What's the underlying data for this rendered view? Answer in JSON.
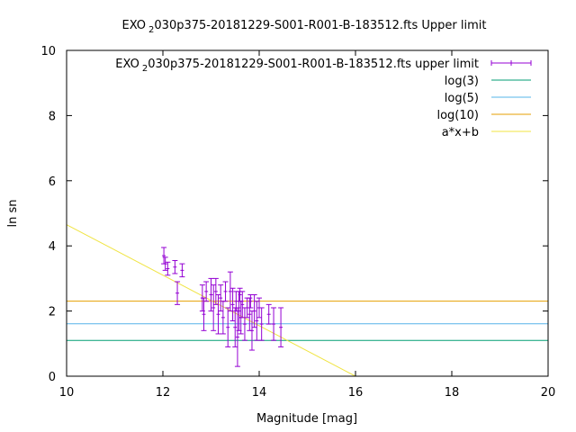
{
  "chart_data": {
    "type": "scatter",
    "title": {
      "prefix": "EXO",
      "subscript": "2",
      "suffix": "030p375-20181229-S001-R001-B-183512.fts Upper limit"
    },
    "xlabel": "Magnitude [mag]",
    "ylabel": "ln sn",
    "xlim": [
      10,
      20
    ],
    "ylim": [
      0,
      10
    ],
    "xticks": [
      "10",
      "12",
      "14",
      "16",
      "18",
      "20"
    ],
    "yticks": [
      "0",
      "2",
      "4",
      "6",
      "8",
      "10"
    ],
    "grid": false,
    "legend_position": "top-right",
    "legend": [
      {
        "prefix": "EXO",
        "subscript": "2",
        "suffix": "030p375-20181229-S001-R001-B-183512.fts upper limit",
        "style": "errorbars",
        "color": "#9400d3"
      },
      {
        "label": "log(3)",
        "style": "line",
        "color": "#009e73"
      },
      {
        "label": "log(5)",
        "style": "line",
        "color": "#56b4e9"
      },
      {
        "label": "log(10)",
        "style": "line",
        "color": "#e69f00"
      },
      {
        "label": "a*x+b",
        "style": "line",
        "color": "#f0e442"
      }
    ],
    "hlines": [
      {
        "name": "log(3)",
        "y": 1.0986,
        "color": "#009e73"
      },
      {
        "name": "log(5)",
        "y": 1.6094,
        "color": "#56b4e9"
      },
      {
        "name": "log(10)",
        "y": 2.3026,
        "color": "#e69f00"
      }
    ],
    "fit_line": {
      "name": "a*x+b",
      "slope": -0.775,
      "intercept": 12.4,
      "x_range": [
        10,
        16.0
      ],
      "color": "#f0e442"
    },
    "series": [
      {
        "name": "EXO 2 030p375-20181229-S001-R001-B-183512.fts upper limit",
        "color": "#9400d3",
        "points": [
          {
            "x": 12.02,
            "y": 3.7,
            "err": 0.25
          },
          {
            "x": 12.05,
            "y": 3.45,
            "err": 0.2
          },
          {
            "x": 12.1,
            "y": 3.3,
            "err": 0.2
          },
          {
            "x": 12.25,
            "y": 3.35,
            "err": 0.2
          },
          {
            "x": 12.3,
            "y": 2.55,
            "err": 0.35
          },
          {
            "x": 12.4,
            "y": 3.25,
            "err": 0.2
          },
          {
            "x": 12.82,
            "y": 2.4,
            "err": 0.4
          },
          {
            "x": 12.85,
            "y": 1.9,
            "err": 0.5
          },
          {
            "x": 12.9,
            "y": 2.6,
            "err": 0.3
          },
          {
            "x": 13.0,
            "y": 2.5,
            "err": 0.5
          },
          {
            "x": 13.05,
            "y": 2.1,
            "err": 0.7
          },
          {
            "x": 13.1,
            "y": 2.6,
            "err": 0.4
          },
          {
            "x": 13.15,
            "y": 1.9,
            "err": 0.6
          },
          {
            "x": 13.2,
            "y": 2.4,
            "err": 0.4
          },
          {
            "x": 13.25,
            "y": 1.8,
            "err": 0.5
          },
          {
            "x": 13.3,
            "y": 2.6,
            "err": 0.3
          },
          {
            "x": 13.35,
            "y": 1.5,
            "err": 0.6
          },
          {
            "x": 13.4,
            "y": 2.6,
            "err": 0.6
          },
          {
            "x": 13.45,
            "y": 2.2,
            "err": 0.5
          },
          {
            "x": 13.5,
            "y": 1.5,
            "err": 0.6
          },
          {
            "x": 13.52,
            "y": 2.3,
            "err": 0.3
          },
          {
            "x": 13.55,
            "y": 1.2,
            "err": 0.9
          },
          {
            "x": 13.58,
            "y": 2.0,
            "err": 0.6
          },
          {
            "x": 13.6,
            "y": 2.5,
            "err": 0.2
          },
          {
            "x": 13.62,
            "y": 1.8,
            "err": 0.5
          },
          {
            "x": 13.65,
            "y": 2.2,
            "err": 0.4
          },
          {
            "x": 13.7,
            "y": 1.6,
            "err": 0.5
          },
          {
            "x": 13.75,
            "y": 2.1,
            "err": 0.3
          },
          {
            "x": 13.8,
            "y": 1.9,
            "err": 0.5
          },
          {
            "x": 13.82,
            "y": 2.3,
            "err": 0.2
          },
          {
            "x": 13.85,
            "y": 1.4,
            "err": 0.6
          },
          {
            "x": 13.9,
            "y": 2.0,
            "err": 0.5
          },
          {
            "x": 13.95,
            "y": 1.7,
            "err": 0.6
          },
          {
            "x": 14.0,
            "y": 2.1,
            "err": 0.3
          },
          {
            "x": 14.05,
            "y": 1.6,
            "err": 0.5
          },
          {
            "x": 14.2,
            "y": 1.9,
            "err": 0.3
          },
          {
            "x": 14.3,
            "y": 1.6,
            "err": 0.5
          },
          {
            "x": 14.45,
            "y": 1.5,
            "err": 0.6
          }
        ]
      }
    ]
  }
}
